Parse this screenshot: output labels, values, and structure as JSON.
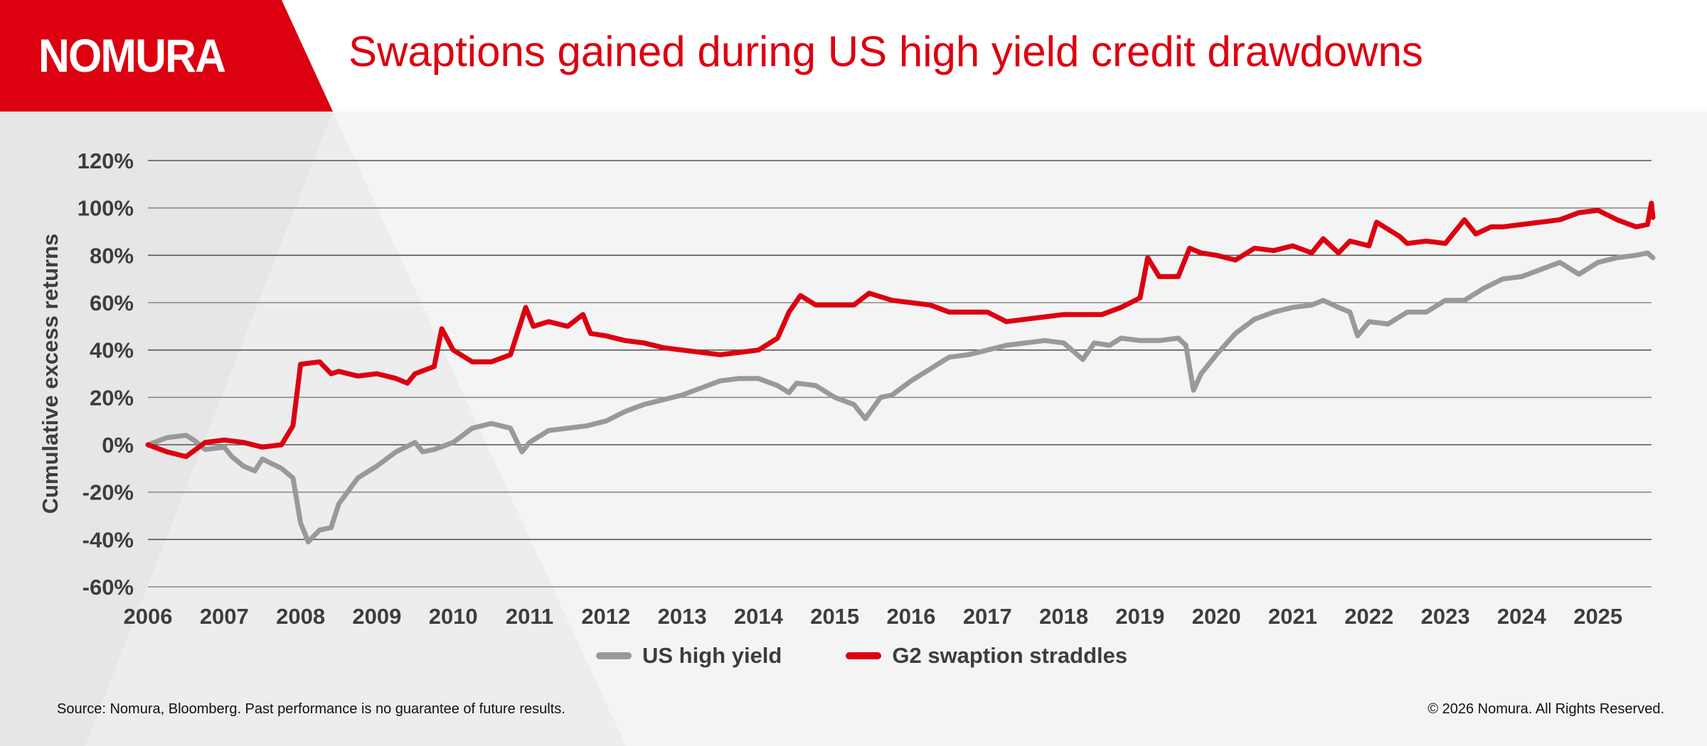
{
  "header": {
    "logo": "NOMURA",
    "title": "Swaptions gained during US high yield credit drawdowns"
  },
  "colors": {
    "brand_red": "#dc0010",
    "gray_series": "#999999",
    "text_dark": "#3d3d3d"
  },
  "footer": {
    "source": "Source: Nomura, Bloomberg. Past performance is no guarantee of future results.",
    "copyright": "© 2026 Nomura. All Rights Reserved."
  },
  "chart_data": {
    "type": "line",
    "title": "Swaptions gained during US high yield credit drawdowns",
    "xlabel": "",
    "ylabel": "Cumulative excess returns",
    "xlim": [
      2006,
      2025.72
    ],
    "ylim": [
      -60,
      120
    ],
    "y_ticks": [
      120,
      100,
      80,
      60,
      40,
      20,
      0,
      -20,
      -40,
      -60
    ],
    "y_tick_labels": [
      "120%",
      "100%",
      "80%",
      "60%",
      "40%",
      "20%",
      "0%",
      "-20%",
      "-40%",
      "-60%"
    ],
    "x_ticks": [
      2006,
      2007,
      2008,
      2009,
      2010,
      2011,
      2012,
      2013,
      2014,
      2015,
      2016,
      2017,
      2018,
      2019,
      2020,
      2021,
      2022,
      2023,
      2024,
      2025
    ],
    "x_tick_labels": [
      "2006",
      "2007",
      "2008",
      "2009",
      "2010",
      "2011",
      "2012",
      "2013",
      "2014",
      "2015",
      "2016",
      "2017",
      "2018",
      "2019",
      "2020",
      "2021",
      "2022",
      "2023",
      "2024",
      "2025"
    ],
    "grid": true,
    "legend_position": "bottom-center",
    "series": [
      {
        "name": "US high yield",
        "color": "#999999",
        "x": [
          2006.0,
          2006.25,
          2006.5,
          2006.6,
          2006.75,
          2007.0,
          2007.1,
          2007.25,
          2007.4,
          2007.5,
          2007.75,
          2007.9,
          2008.0,
          2008.1,
          2008.25,
          2008.4,
          2008.5,
          2008.75,
          2009.0,
          2009.25,
          2009.5,
          2009.6,
          2009.75,
          2010.0,
          2010.25,
          2010.5,
          2010.75,
          2010.9,
          2011.0,
          2011.25,
          2011.5,
          2011.75,
          2012.0,
          2012.25,
          2012.5,
          2012.75,
          2013.0,
          2013.25,
          2013.5,
          2013.75,
          2014.0,
          2014.25,
          2014.4,
          2014.5,
          2014.75,
          2015.0,
          2015.25,
          2015.4,
          2015.6,
          2015.75,
          2016.0,
          2016.25,
          2016.5,
          2016.75,
          2017.0,
          2017.25,
          2017.5,
          2017.75,
          2018.0,
          2018.25,
          2018.4,
          2018.6,
          2018.75,
          2019.0,
          2019.25,
          2019.5,
          2019.6,
          2019.7,
          2019.8,
          2020.0,
          2020.25,
          2020.5,
          2020.75,
          2021.0,
          2021.25,
          2021.4,
          2021.6,
          2021.75,
          2021.85,
          2022.0,
          2022.25,
          2022.5,
          2022.75,
          2023.0,
          2023.25,
          2023.5,
          2023.75,
          2024.0,
          2024.25,
          2024.5,
          2024.75,
          2025.0,
          2025.25,
          2025.5,
          2025.65,
          2025.72
        ],
        "values": [
          0,
          3,
          4,
          2,
          -2,
          -1,
          -5,
          -9,
          -11,
          -6,
          -10,
          -14,
          -33,
          -41,
          -36,
          -35,
          -25,
          -14,
          -9,
          -3,
          1,
          -3,
          -2,
          1,
          7,
          9,
          7,
          -3,
          1,
          6,
          7,
          8,
          10,
          14,
          17,
          19,
          21,
          24,
          27,
          28,
          28,
          25,
          22,
          26,
          25,
          20,
          17,
          11,
          20,
          21,
          27,
          32,
          37,
          38,
          40,
          42,
          43,
          44,
          43,
          36,
          43,
          42,
          45,
          44,
          44,
          45,
          42,
          23,
          30,
          38,
          47,
          53,
          56,
          58,
          59,
          61,
          58,
          56,
          46,
          52,
          51,
          56,
          56,
          61,
          61,
          66,
          70,
          71,
          74,
          77,
          72,
          77,
          79,
          80,
          81,
          79
        ]
      },
      {
        "name": "G2 swaption straddles",
        "color": "#dc0010",
        "x": [
          2006.0,
          2006.25,
          2006.5,
          2006.75,
          2007.0,
          2007.25,
          2007.5,
          2007.75,
          2007.9,
          2008.0,
          2008.25,
          2008.4,
          2008.5,
          2008.75,
          2009.0,
          2009.25,
          2009.4,
          2009.5,
          2009.75,
          2009.85,
          2010.0,
          2010.25,
          2010.5,
          2010.75,
          2010.95,
          2011.05,
          2011.25,
          2011.5,
          2011.7,
          2011.8,
          2012.0,
          2012.25,
          2012.5,
          2012.75,
          2013.0,
          2013.5,
          2013.75,
          2014.0,
          2014.25,
          2014.4,
          2014.55,
          2014.75,
          2015.0,
          2015.25,
          2015.45,
          2015.75,
          2016.0,
          2016.25,
          2016.5,
          2016.75,
          2017.0,
          2017.25,
          2017.5,
          2017.75,
          2018.0,
          2018.25,
          2018.5,
          2018.75,
          2019.0,
          2019.1,
          2019.25,
          2019.5,
          2019.65,
          2019.8,
          2020.0,
          2020.25,
          2020.5,
          2020.75,
          2021.0,
          2021.25,
          2021.4,
          2021.6,
          2021.75,
          2022.0,
          2022.1,
          2022.4,
          2022.5,
          2022.75,
          2023.0,
          2023.25,
          2023.4,
          2023.6,
          2023.75,
          2024.0,
          2024.25,
          2024.5,
          2024.75,
          2025.0,
          2025.25,
          2025.5,
          2025.65,
          2025.7,
          2025.72
        ],
        "values": [
          0,
          -3,
          -5,
          1,
          2,
          1,
          -1,
          0,
          8,
          34,
          35,
          30,
          31,
          29,
          30,
          28,
          26,
          30,
          33,
          49,
          40,
          35,
          35,
          38,
          58,
          50,
          52,
          50,
          55,
          47,
          46,
          44,
          43,
          41,
          40,
          38,
          39,
          40,
          45,
          56,
          63,
          59,
          59,
          59,
          64,
          61,
          60,
          59,
          56,
          56,
          56,
          52,
          53,
          54,
          55,
          55,
          55,
          58,
          62,
          79,
          71,
          71,
          83,
          81,
          80,
          78,
          83,
          82,
          84,
          81,
          87,
          81,
          86,
          84,
          94,
          88,
          85,
          86,
          85,
          95,
          89,
          92,
          92,
          93,
          94,
          95,
          98,
          99,
          95,
          92,
          93,
          102,
          96
        ]
      }
    ]
  }
}
